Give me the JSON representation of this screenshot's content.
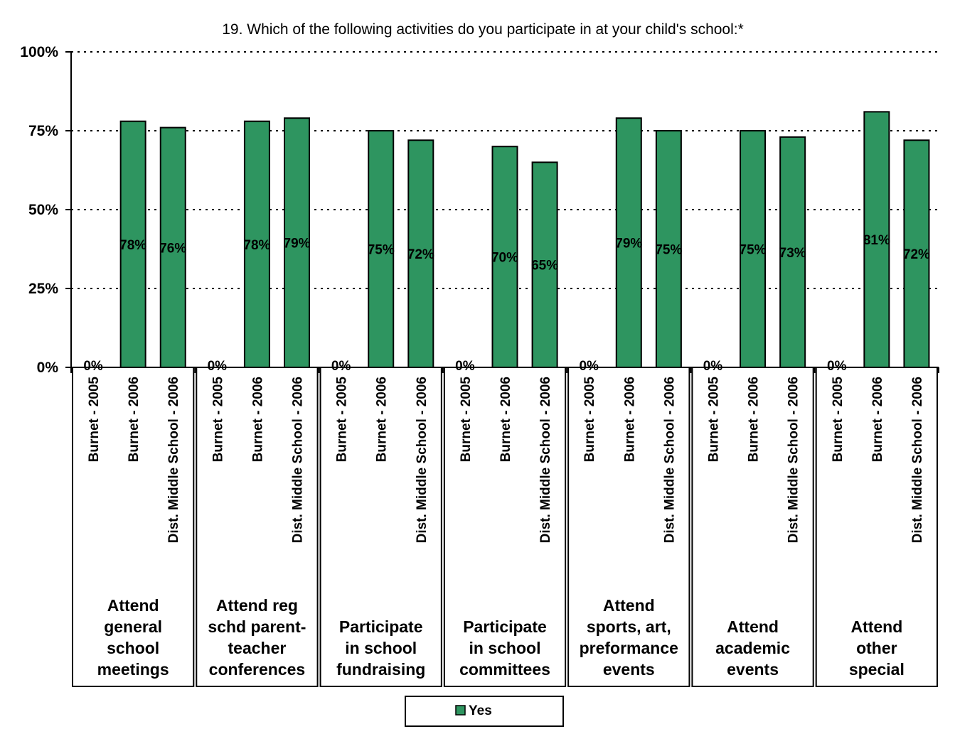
{
  "colors": {
    "bar": "#2e9560",
    "bar_stroke": "#000000",
    "grid": "#000000",
    "background": "#ffffff"
  },
  "chart_data": {
    "type": "bar",
    "title": "19. Which of the following activities do you participate in at your child's school:*",
    "xlabel": "",
    "ylabel": "",
    "ylim": [
      0,
      100
    ],
    "yticks": [
      0,
      25,
      50,
      75,
      100
    ],
    "ytick_labels": [
      "0%",
      "25%",
      "50%",
      "75%",
      "100%"
    ],
    "grid": true,
    "legend_position": "bottom",
    "legend": [
      "Yes"
    ],
    "groups": [
      {
        "label_lines": [
          "Attend",
          "general",
          "school",
          "meetings"
        ],
        "categories": [
          "Burnet - 2005",
          "Burnet - 2006",
          "Dist. Middle School - 2006"
        ],
        "values": [
          0,
          78,
          76
        ],
        "labels": [
          "0%",
          "78%",
          "76%"
        ]
      },
      {
        "label_lines": [
          "Attend reg",
          "schd parent-",
          "teacher",
          "conferences"
        ],
        "categories": [
          "Burnet - 2005",
          "Burnet - 2006",
          "Dist. Middle School - 2006"
        ],
        "values": [
          0,
          78,
          79
        ],
        "labels": [
          "0%",
          "78%",
          "79%"
        ]
      },
      {
        "label_lines": [
          "Participate",
          "in school",
          "fundraising"
        ],
        "categories": [
          "Burnet - 2005",
          "Burnet - 2006",
          "Dist. Middle School - 2006"
        ],
        "values": [
          0,
          75,
          72
        ],
        "labels": [
          "0%",
          "75%",
          "72%"
        ]
      },
      {
        "label_lines": [
          "Participate",
          "in school",
          "committees"
        ],
        "categories": [
          "Burnet - 2005",
          "Burnet - 2006",
          "Dist. Middle School - 2006"
        ],
        "values": [
          0,
          70,
          65
        ],
        "labels": [
          "0%",
          "70%",
          "65%"
        ]
      },
      {
        "label_lines": [
          "Attend",
          "sports, art,",
          "preformance",
          "events"
        ],
        "categories": [
          "Burnet - 2005",
          "Burnet - 2006",
          "Dist. Middle School - 2006"
        ],
        "values": [
          0,
          79,
          75
        ],
        "labels": [
          "0%",
          "79%",
          "75%"
        ]
      },
      {
        "label_lines": [
          "Attend",
          "academic",
          "events"
        ],
        "categories": [
          "Burnet - 2005",
          "Burnet - 2006",
          "Dist. Middle School - 2006"
        ],
        "values": [
          0,
          75,
          73
        ],
        "labels": [
          "0%",
          "75%",
          "73%"
        ]
      },
      {
        "label_lines": [
          "Attend",
          "other",
          "special"
        ],
        "categories": [
          "Burnet - 2005",
          "Burnet - 2006",
          "Dist. Middle School - 2006"
        ],
        "values": [
          0,
          81,
          72
        ],
        "labels": [
          "0%",
          "81%",
          "72%"
        ]
      }
    ]
  }
}
